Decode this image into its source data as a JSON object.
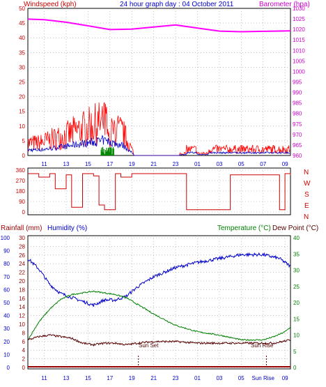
{
  "header": {
    "windspeed_label": "Windspeed (kph)",
    "title": "24 hour graph day : 04 October 2011",
    "barometer_label": "Barometer (hpa)"
  },
  "lower_header": {
    "rainfall_label": "Rainfall (mm)",
    "humidity_label": "Humidity (%)",
    "temperature_label": "Temperature (°C)",
    "dewpoint_label": "Dew Point (°C)"
  },
  "annotations": {
    "sun_set": "Sun Set",
    "sun_rise": "Sun Rise"
  },
  "compass": [
    "N",
    "W",
    "S",
    "E",
    "N"
  ],
  "colors": {
    "wind": "#ff0000",
    "gust_avg": "#0000cc",
    "wind_green": "#008800",
    "barometer": "#ff00ff",
    "direction": "#cc0000",
    "humidity": "#0000cc",
    "temperature": "#008000",
    "dewpoint": "#550000",
    "rainfall": "#990000",
    "label_red": "#cc0000",
    "label_blue": "#0000cc",
    "label_green": "#008000",
    "label_magenta": "#cc00cc"
  },
  "chart_data": [
    {
      "type": "line",
      "name": "wind-barometer",
      "x_ticks": [
        "11",
        "13",
        "15",
        "17",
        "19",
        "21",
        "23",
        "01",
        "03",
        "05",
        "07",
        "09"
      ],
      "y_left_ticks": [
        "0",
        "5",
        "10",
        "15",
        "20",
        "25",
        "30",
        "35",
        "40",
        "45",
        "50"
      ],
      "y_right_ticks": [
        "960",
        "965",
        "970",
        "975",
        "980",
        "985",
        "990",
        "995",
        "1000",
        "1005",
        "1010",
        "1015",
        "1020",
        "1025",
        "1030"
      ],
      "ylim_left": [
        0,
        50
      ],
      "ylim_right": [
        960,
        1030
      ],
      "x_hours": [
        9.5,
        33.5
      ],
      "barometer": {
        "x": [
          9.5,
          11,
          13,
          15,
          17,
          19,
          21,
          23,
          25,
          27,
          29,
          31,
          33.5
        ],
        "y": [
          1024.9,
          1024.6,
          1023.4,
          1021.7,
          1019.9,
          1020.1,
          1021.1,
          1022.1,
          1020.6,
          1019.2,
          1018.9,
          1019.1,
          1019.3
        ]
      },
      "wind_peak_kph": 18
    },
    {
      "type": "line",
      "name": "wind-direction",
      "y_ticks": [
        "360",
        "270",
        "180",
        "90",
        "0"
      ],
      "ylim": [
        0,
        360
      ],
      "series": {
        "x": [
          9.5,
          10.5,
          11.5,
          12,
          13,
          13.5,
          14.5,
          15.5,
          16,
          16.5,
          17.5,
          18,
          19,
          21,
          23,
          23.4,
          24,
          26,
          27.7,
          28,
          30,
          32,
          32.5,
          33,
          33.5
        ],
        "y": [
          330,
          300,
          330,
          200,
          320,
          40,
          330,
          310,
          60,
          20,
          330,
          300,
          330,
          330,
          330,
          330,
          20,
          20,
          20,
          320,
          320,
          320,
          20,
          330,
          320
        ]
      }
    },
    {
      "type": "line",
      "name": "humidity-temperature",
      "y_left_ticks": [
        "0",
        "2",
        "4",
        "6",
        "8",
        "10",
        "12",
        "14",
        "16",
        "18",
        "20",
        "22",
        "24",
        "26",
        "28",
        "30"
      ],
      "y_humidity_ticks": [
        "0",
        "10",
        "20",
        "30",
        "40",
        "50",
        "60",
        "70",
        "80",
        "90",
        "100"
      ],
      "y_right_ticks": [
        "0",
        "5",
        "10",
        "15",
        "20",
        "25",
        "30",
        "35",
        "40"
      ],
      "x_ticks": [
        "11",
        "13",
        "15",
        "17",
        "19",
        "21",
        "23",
        "01",
        "03",
        "05",
        "Sun Rise",
        "09"
      ],
      "ylim_left": [
        0,
        30
      ],
      "ylim_right": [
        0,
        40
      ],
      "humidity": {
        "x": [
          9.5,
          10.5,
          11.5,
          12.5,
          13.5,
          14.5,
          15.5,
          16.5,
          17.5,
          18.5,
          19.5,
          21,
          23,
          25,
          27,
          29,
          31,
          32.5,
          33.5
        ],
        "y": [
          84,
          76,
          64,
          57,
          54,
          51,
          48,
          52,
          52,
          55,
          62,
          70,
          77,
          81,
          84,
          87,
          87,
          84,
          78
        ]
      },
      "temperature": {
        "x": [
          9.5,
          10.5,
          11.5,
          12.5,
          13.5,
          14.5,
          15.5,
          16.5,
          17.5,
          18.5,
          19.5,
          21,
          23,
          25,
          27,
          29,
          31,
          32,
          33,
          33.5
        ],
        "y": [
          8.5,
          14,
          18,
          21,
          22.5,
          23,
          23.5,
          23,
          22.5,
          21.5,
          19.5,
          16.5,
          13,
          11,
          10,
          8.5,
          8.5,
          9.5,
          11,
          12.5
        ]
      },
      "dewpoint": {
        "x": [
          9.5,
          10.5,
          11.5,
          12.5,
          13.5,
          14.5,
          15.5,
          16.5,
          17.5,
          18.5,
          19.5,
          21,
          23,
          25,
          27,
          29,
          31,
          32,
          33.5
        ],
        "y": [
          8.5,
          9.5,
          10,
          9.5,
          9,
          7.5,
          7,
          7.5,
          7.5,
          7,
          7.5,
          8,
          8,
          7.5,
          7.5,
          7.5,
          7.5,
          7.5,
          8.5
        ]
      },
      "rainfall_mm": 0
    }
  ]
}
